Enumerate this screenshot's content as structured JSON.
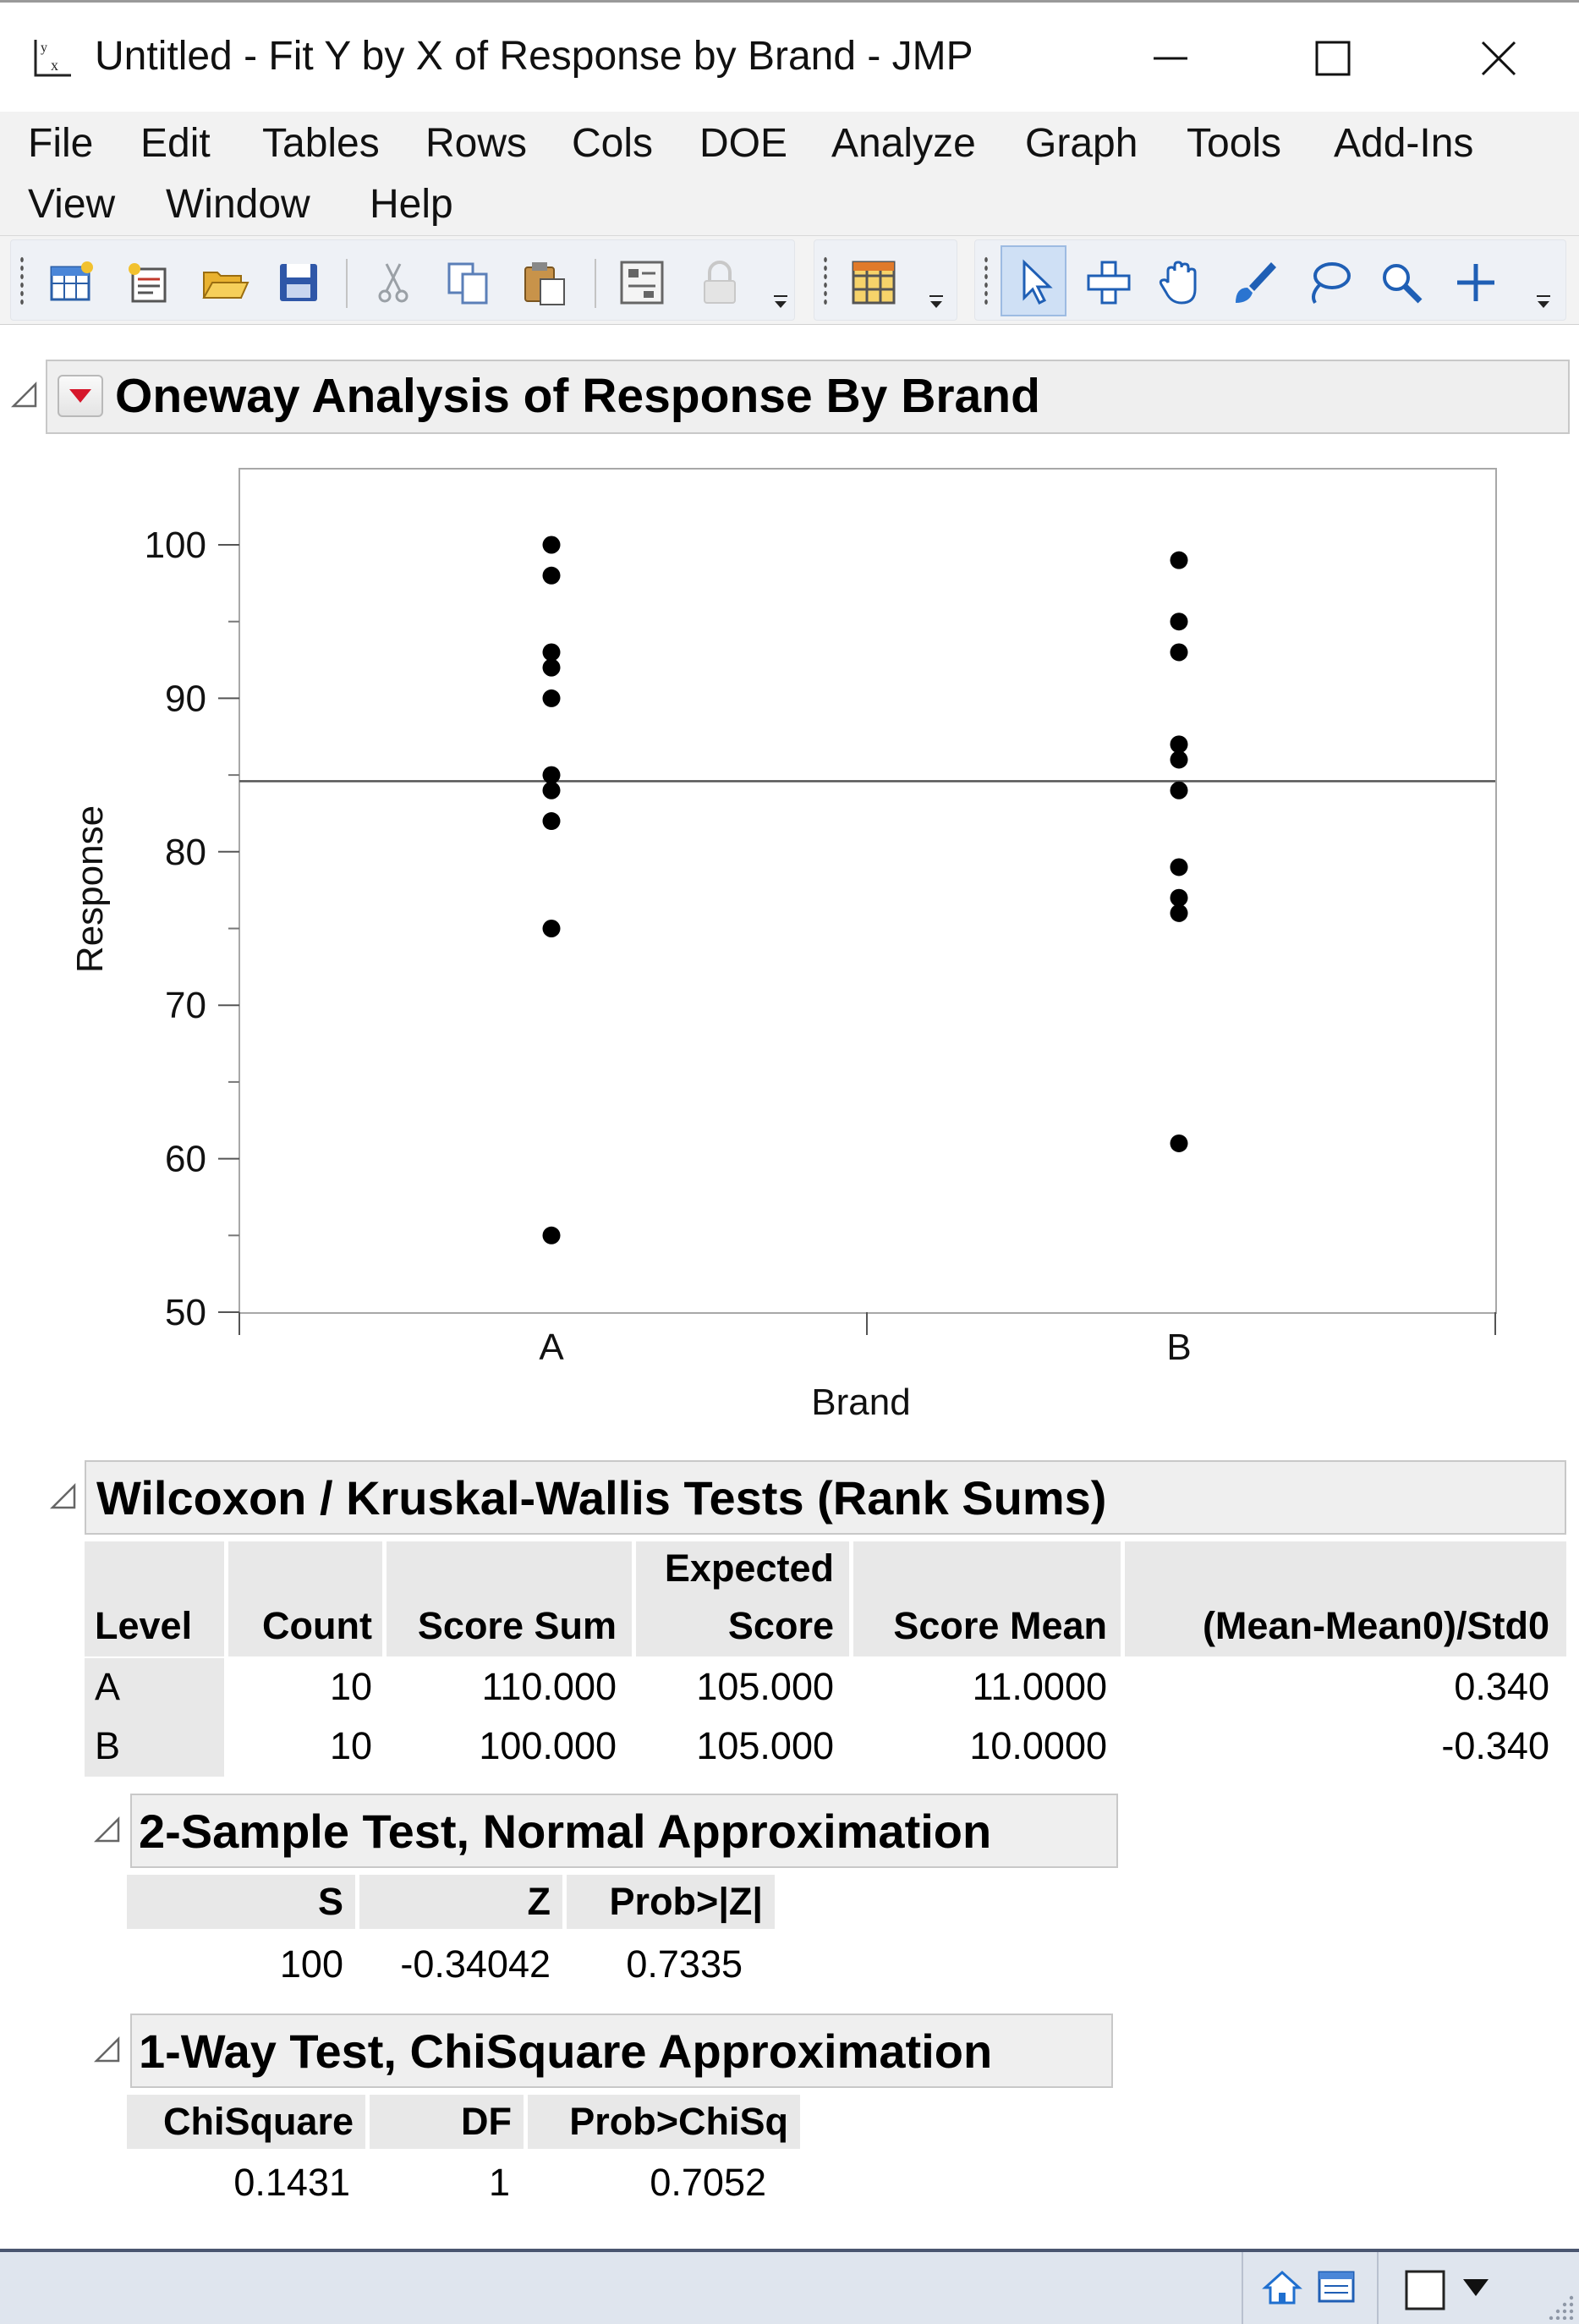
{
  "window": {
    "title": "Untitled - Fit Y by X of Response by Brand - JMP",
    "icon": "fit-y-by-x-icon"
  },
  "menu": {
    "items": [
      "File",
      "Edit",
      "Tables",
      "Rows",
      "Cols",
      "DOE",
      "Analyze",
      "Graph",
      "Tools",
      "Add-Ins",
      "View",
      "Window",
      "Help"
    ]
  },
  "toolbar": {
    "icons": [
      "new-data-table-icon",
      "new-script-icon",
      "open-icon",
      "save-icon",
      "cut-icon",
      "copy-icon",
      "paste-icon",
      "data-view-icon",
      "lock-icon",
      "table-icon",
      "arrow-tool-icon",
      "crosshair-tool-icon",
      "hand-tool-icon",
      "brush-tool-icon",
      "lasso-tool-icon",
      "magnifier-tool-icon",
      "annotate-plus-icon"
    ]
  },
  "report": {
    "title": "Oneway Analysis of Response By Brand"
  },
  "chart_data": {
    "type": "scatter",
    "title": "",
    "xlabel": "Brand",
    "ylabel": "Response",
    "categories": [
      "A",
      "B"
    ],
    "ylim": [
      48,
      105
    ],
    "yticks": [
      50,
      60,
      70,
      80,
      90,
      100
    ],
    "grand_mean": 84.6,
    "series": [
      {
        "name": "A",
        "values": [
          100,
          98,
          93,
          92,
          90,
          85,
          84,
          82,
          75,
          55
        ]
      },
      {
        "name": "B",
        "values": [
          99,
          95,
          93,
          87,
          86,
          84,
          79,
          77,
          76,
          61
        ]
      }
    ],
    "colors": {
      "points": "#000000",
      "mean_line": "#555555"
    }
  },
  "wilcoxon": {
    "title": "Wilcoxon / Kruskal-Wallis Tests (Rank Sums)",
    "headers": {
      "level": "Level",
      "count": "Count",
      "score_sum": "Score Sum",
      "expected_1": "Expected",
      "expected_2": "Score",
      "score_mean": "Score Mean",
      "std": "(Mean-Mean0)/Std0"
    },
    "rows": [
      {
        "level": "A",
        "count": "10",
        "score_sum": "110.000",
        "expected": "105.000",
        "score_mean": "11.0000",
        "std": "0.340"
      },
      {
        "level": "B",
        "count": "10",
        "score_sum": "100.000",
        "expected": "105.000",
        "score_mean": "10.0000",
        "std": "-0.340"
      }
    ]
  },
  "two_sample": {
    "title": "2-Sample Test, Normal Approximation",
    "headers": {
      "s": "S",
      "z": "Z",
      "prob": "Prob>|Z|"
    },
    "values": {
      "s": "100",
      "z": "-0.34042",
      "prob": "0.7335"
    }
  },
  "chisq": {
    "title": "1-Way Test, ChiSquare Approximation",
    "headers": {
      "chisq": "ChiSquare",
      "df": "DF",
      "prob": "Prob>ChiSq"
    },
    "values": {
      "chisq": "0.1431",
      "df": "1",
      "prob": "0.7052"
    }
  },
  "statusbar": {
    "icons": [
      "home-icon",
      "window-list-icon",
      "window-square-icon",
      "dropdown-triangle-icon"
    ]
  }
}
